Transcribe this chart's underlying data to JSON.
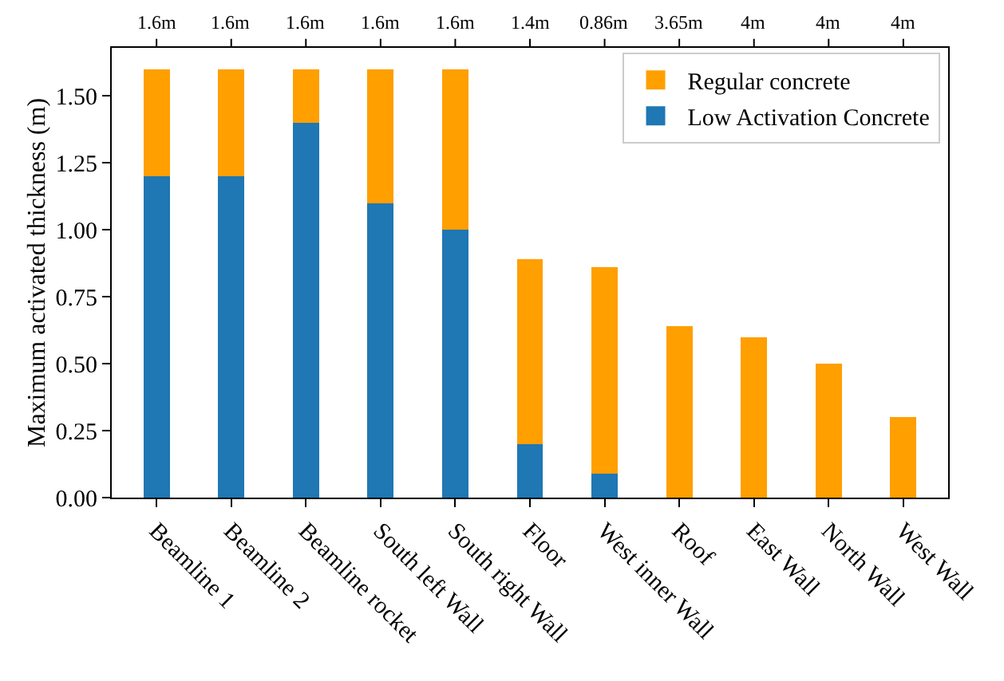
{
  "chart_data": {
    "type": "bar",
    "stacked": true,
    "ylabel": "Maximum activated thickness (m)",
    "categories": [
      "Beamline 1",
      "Beamline 2",
      "Beamline rocket",
      "South left Wall",
      "South right Wall",
      "Floor",
      "West inner Wall",
      "Roof",
      "East Wall",
      "North Wall",
      "West Wall"
    ],
    "series": [
      {
        "name": "Low Activation Concrete",
        "color": "#1f77b4",
        "values": [
          1.2,
          1.2,
          1.4,
          1.1,
          1.0,
          0.2,
          0.09,
          0,
          0,
          0,
          0
        ]
      },
      {
        "name": "Regular concrete",
        "color": "#ff9f00",
        "values": [
          0.4,
          0.4,
          0.2,
          0.5,
          0.6,
          0.69,
          0.77,
          0.64,
          0.6,
          0.5,
          0.3
        ]
      }
    ],
    "annotations": [
      {
        "text": "1.6m",
        "x": "Beamline 1"
      },
      {
        "text": "1.6m",
        "x": "Beamline 2"
      },
      {
        "text": "1.6m",
        "x": "Beamline rocket"
      },
      {
        "text": "1.6m",
        "x": "South left Wall"
      },
      {
        "text": "1.6m",
        "x": "South right Wall"
      },
      {
        "text": "1.4m",
        "x": "Floor"
      },
      {
        "text": "0.86m",
        "x": "West inner Wall"
      },
      {
        "text": "3.65m",
        "x": "Roof"
      },
      {
        "text": "4m",
        "x": "East Wall"
      },
      {
        "text": "4m",
        "x": "North Wall"
      },
      {
        "text": "4m",
        "x": "West Wall"
      }
    ],
    "ylim": [
      0,
      1.68
    ],
    "yticks": [
      {
        "value": 0,
        "label": "0.00"
      },
      {
        "value": 0.25,
        "label": "0.25"
      },
      {
        "value": 0.5,
        "label": "0.50"
      },
      {
        "value": 0.75,
        "label": "0.75"
      },
      {
        "value": 1.0,
        "label": "1.00"
      },
      {
        "value": 1.25,
        "label": "1.25"
      },
      {
        "value": 1.5,
        "label": "1.50"
      }
    ],
    "grid": false,
    "legend": "top right"
  }
}
